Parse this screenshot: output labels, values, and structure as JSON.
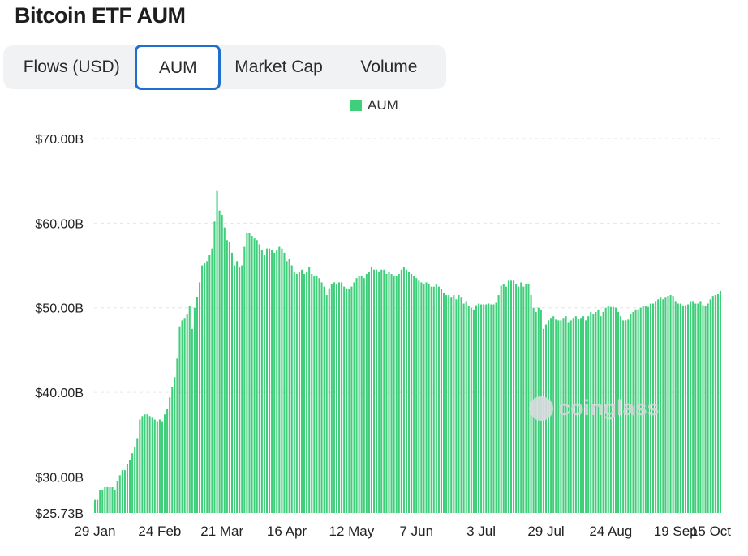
{
  "header": {
    "title": "Bitcoin ETF AUM"
  },
  "tabs": [
    {
      "label": "Flows (USD)",
      "selected": false
    },
    {
      "label": "AUM",
      "selected": true
    },
    {
      "label": "Market Cap",
      "selected": false
    },
    {
      "label": "Volume",
      "selected": false
    }
  ],
  "watermark": {
    "text": "coinglass"
  },
  "colors": {
    "bar": "#3fcf7a",
    "tab_selected_border": "#1f6fd1",
    "grid": "#e6e6e6"
  },
  "chart_data": {
    "type": "bar",
    "title": "",
    "legend": {
      "entries": [
        "AUM"
      ],
      "placement": "top-center"
    },
    "grid": true,
    "ylim": [
      25.73,
      70
    ],
    "ytick_values": [
      25.73,
      30,
      40,
      50,
      60,
      70
    ],
    "ytick_labels": [
      "$25.73B",
      "$30.00B",
      "$40.00B",
      "$50.00B",
      "$60.00B",
      "$70.00B"
    ],
    "xtick_labels": [
      "29 Jan",
      "24 Feb",
      "21 Mar",
      "16 Apr",
      "12 May",
      "7 Jun",
      "3 Jul",
      "29 Jul",
      "24 Aug",
      "19 Sep",
      "15 Oct"
    ],
    "xtick_index": [
      0,
      26,
      51,
      77,
      103,
      129,
      155,
      181,
      207,
      233,
      259
    ],
    "series": [
      {
        "name": "AUM",
        "unit": "$B",
        "values": [
          27.3,
          27.3,
          28.5,
          28.5,
          28.8,
          28.8,
          28.8,
          28.8,
          28.5,
          29.5,
          30.2,
          30.8,
          30.8,
          31.5,
          32.0,
          32.8,
          33.5,
          34.5,
          36.8,
          37.2,
          37.4,
          37.4,
          37.2,
          37.0,
          36.8,
          36.5,
          36.8,
          36.5,
          37.4,
          38.0,
          39.4,
          40.6,
          41.8,
          44.0,
          47.8,
          48.5,
          48.8,
          49.2,
          50.2,
          47.5,
          50.0,
          51.3,
          53.0,
          55.0,
          55.3,
          55.5,
          56.2,
          57.0,
          60.2,
          63.8,
          61.5,
          61.0,
          59.5,
          58.0,
          57.8,
          56.5,
          55.0,
          55.5,
          54.8,
          55.0,
          57.2,
          58.8,
          58.8,
          58.5,
          58.2,
          58.0,
          57.5,
          56.8,
          56.2,
          57.0,
          57.0,
          56.8,
          56.5,
          56.8,
          57.2,
          57.0,
          56.5,
          55.5,
          55.8,
          55.0,
          54.2,
          54.0,
          54.2,
          54.5,
          54.0,
          54.2,
          54.8,
          54.0,
          53.8,
          53.8,
          53.5,
          53.0,
          52.5,
          51.5,
          52.3,
          52.8,
          53.0,
          52.8,
          53.0,
          53.0,
          52.5,
          52.3,
          52.2,
          52.5,
          53.0,
          53.5,
          53.8,
          53.8,
          53.5,
          54.0,
          54.2,
          54.8,
          54.5,
          54.5,
          54.3,
          54.5,
          54.5,
          54.0,
          54.2,
          54.0,
          53.8,
          53.8,
          54.0,
          54.5,
          54.8,
          54.5,
          54.2,
          54.0,
          53.8,
          53.5,
          53.2,
          53.0,
          52.8,
          53.0,
          52.8,
          52.5,
          52.5,
          52.8,
          52.5,
          52.2,
          51.8,
          51.5,
          51.5,
          51.2,
          51.5,
          51.0,
          51.5,
          51.2,
          50.5,
          50.8,
          50.2,
          50.0,
          49.8,
          50.3,
          50.5,
          50.4,
          50.4,
          50.4,
          50.5,
          50.4,
          50.4,
          50.6,
          51.5,
          52.6,
          52.8,
          52.5,
          53.2,
          53.2,
          53.2,
          52.8,
          52.5,
          53.0,
          52.5,
          52.8,
          52.8,
          51.5,
          50.0,
          49.5,
          50.0,
          49.8,
          47.5,
          48.0,
          48.5,
          48.8,
          49.0,
          48.6,
          48.5,
          48.5,
          48.8,
          49.0,
          48.3,
          48.5,
          48.8,
          49.0,
          48.7,
          48.8,
          49.0,
          48.5,
          49.0,
          49.5,
          49.2,
          49.5,
          49.8,
          49.0,
          49.5,
          50.0,
          50.2,
          50.1,
          50.1,
          50.0,
          49.5,
          49.0,
          48.5,
          48.5,
          48.6,
          49.3,
          49.5,
          49.8,
          49.8,
          50.0,
          50.2,
          50.2,
          50.1,
          50.5,
          50.5,
          50.8,
          51.0,
          51.2,
          51.0,
          51.2,
          51.4,
          51.5,
          51.4,
          50.8,
          50.5,
          50.5,
          50.2,
          50.3,
          50.4,
          50.8,
          50.8,
          50.5,
          50.5,
          50.8,
          50.3,
          50.2,
          50.5,
          51.0,
          51.4,
          51.5,
          51.6,
          52.0
        ]
      }
    ]
  }
}
